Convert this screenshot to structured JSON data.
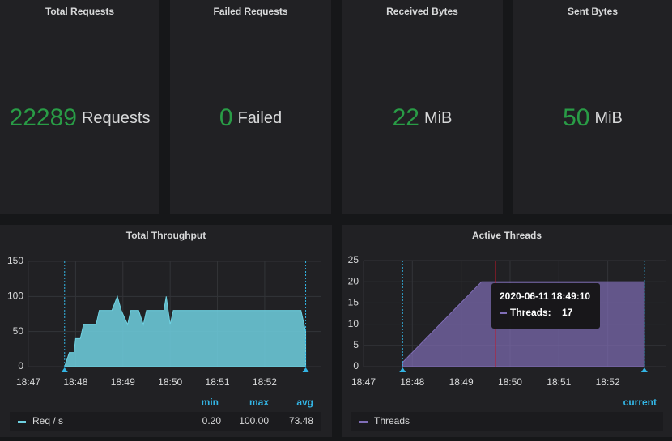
{
  "stats": [
    {
      "title": "Total Requests",
      "value": 22289,
      "unit": "Requests"
    },
    {
      "title": "Failed Requests",
      "value": 0,
      "unit": "Failed"
    },
    {
      "title": "Received Bytes",
      "value": 22,
      "unit": "MiB"
    },
    {
      "title": "Sent Bytes",
      "value": 50,
      "unit": "MiB"
    }
  ],
  "chart_data": [
    {
      "type": "area",
      "title": "Total Throughput",
      "xlim": [
        "18:47:00",
        "18:53:12"
      ],
      "xticks": [
        "18:47",
        "18:48",
        "18:49",
        "18:50",
        "18:51",
        "18:52"
      ],
      "ylim": [
        0,
        150
      ],
      "yticks": [
        0,
        50,
        100,
        150
      ],
      "grid": true,
      "x": [
        "18:47:46",
        "18:47:52",
        "18:47:58",
        "18:48:00",
        "18:48:06",
        "18:48:10",
        "18:48:26",
        "18:48:30",
        "18:48:46",
        "18:48:53",
        "18:48:58",
        "18:49:06",
        "18:49:10",
        "18:49:20",
        "18:49:26",
        "18:49:30",
        "18:49:52",
        "18:49:55",
        "18:50:00",
        "18:50:04",
        "18:52:46",
        "18:52:52"
      ],
      "series": [
        {
          "name": "Req / s",
          "color": "#6ed0e0",
          "values": [
            0.2,
            20,
            20,
            40,
            40,
            60,
            60,
            80,
            80,
            100,
            80,
            60,
            80,
            80,
            60,
            80,
            80,
            100,
            60,
            80,
            80,
            50
          ],
          "legend_values": [
            0.2,
            100,
            73.48
          ],
          "legend_value_labels": [
            "0.20",
            "100.00",
            "73.48"
          ]
        }
      ],
      "legend_columns": [
        "min",
        "max",
        "avg"
      ]
    },
    {
      "type": "area",
      "title": "Active Threads",
      "xlim": [
        "18:47:00",
        "18:53:11"
      ],
      "xticks": [
        "18:47",
        "18:48",
        "18:49",
        "18:50",
        "18:51",
        "18:52"
      ],
      "ylim": [
        0,
        25
      ],
      "yticks": [
        0,
        5,
        10,
        15,
        20,
        25
      ],
      "grid": true,
      "x": [
        "18:47:48",
        "18:49:25",
        "18:52:45"
      ],
      "series": [
        {
          "name": "Threads",
          "color": "#806eb7",
          "values": [
            1,
            20,
            20
          ]
        }
      ],
      "legend_columns": [
        "current"
      ],
      "tooltip": {
        "title": "2020-06-11 18:49:10",
        "label": "Threads:",
        "value": 17
      }
    }
  ]
}
